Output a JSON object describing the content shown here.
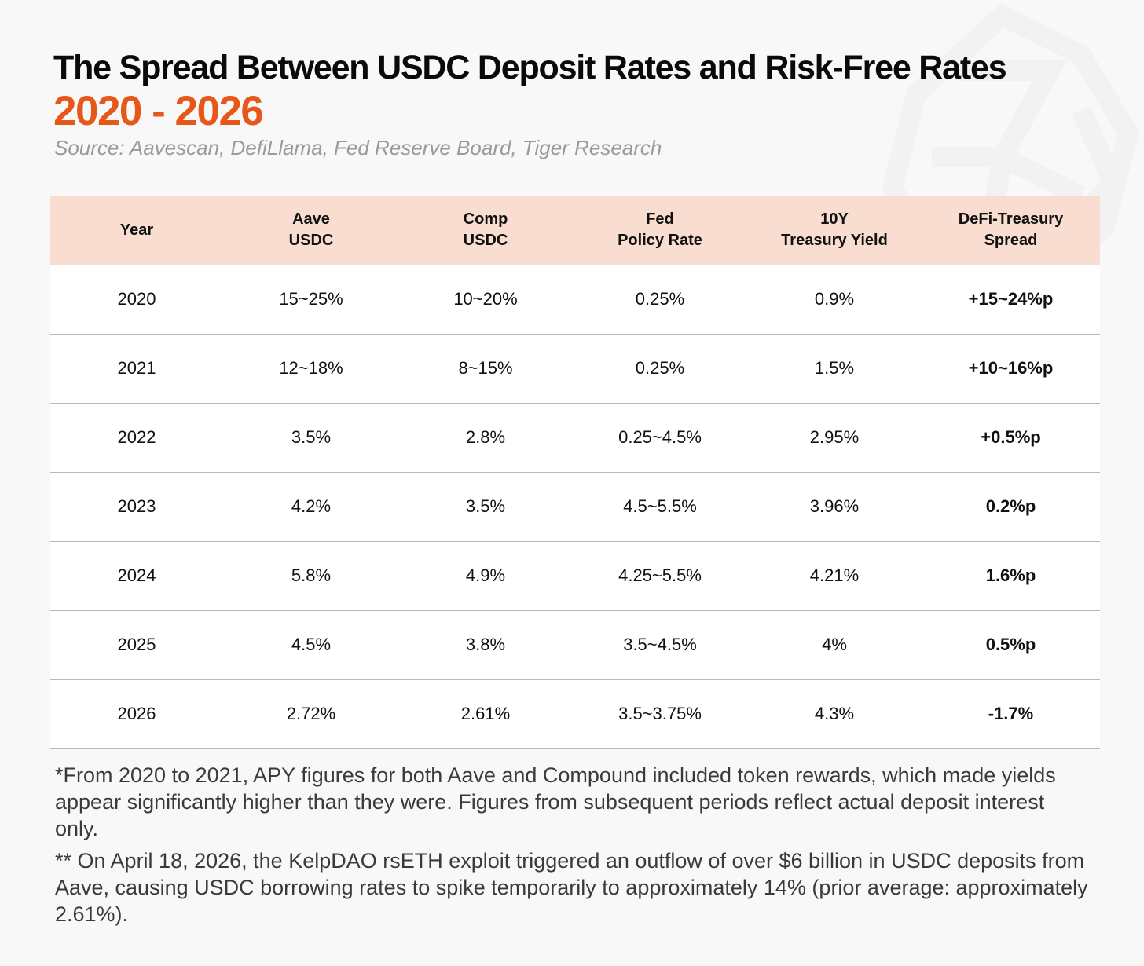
{
  "title": "The Spread Between USDC Deposit Rates and Risk-Free Rates",
  "subtitle": "2020 - 2026",
  "source": "Source: Aavescan, DefiLlama, Fed Reserve Board, Tiger Research",
  "colors": {
    "accent": "#e8571a",
    "header_bg": "#f8ddd0",
    "background": "#f8f8f8"
  },
  "chart_data": {
    "type": "table",
    "title": "The Spread Between USDC Deposit Rates and Risk-Free Rates",
    "columns": [
      "Year",
      "Aave\nUSDC",
      "Comp\nUSDC",
      "Fed\nPolicy Rate",
      "10Y\nTreasury Yield",
      "DeFi-Treasury\nSpread"
    ],
    "rows": [
      [
        "2020",
        "15~25%",
        "10~20%",
        "0.25%",
        "0.9%",
        "+15~24%p"
      ],
      [
        "2021",
        "12~18%",
        "8~15%",
        "0.25%",
        "1.5%",
        "+10~16%p"
      ],
      [
        "2022",
        "3.5%",
        "2.8%",
        "0.25~4.5%",
        "2.95%",
        "+0.5%p"
      ],
      [
        "2023",
        "4.2%",
        "3.5%",
        "4.5~5.5%",
        "3.96%",
        "0.2%p"
      ],
      [
        "2024",
        "5.8%",
        "4.9%",
        "4.25~5.5%",
        "4.21%",
        "1.6%p"
      ],
      [
        "2025",
        "4.5%",
        "3.8%",
        "3.5~4.5%",
        "4%",
        "0.5%p"
      ],
      [
        "2026",
        "2.72%",
        "2.61%",
        "3.5~3.75%",
        "4.3%",
        "-1.7%"
      ]
    ]
  },
  "notes": [
    "*From 2020 to 2021, APY figures for both Aave and Compound included token rewards, which made yields appear significantly higher than they were. Figures from subsequent periods reflect actual deposit interest only.",
    "** On April 18, 2026, the KelpDAO rsETH exploit triggered an outflow of over $6 billion in USDC deposits from Aave, causing USDC borrowing rates to spike temporarily to approximately 14% (prior average: approximately 2.61%)."
  ]
}
